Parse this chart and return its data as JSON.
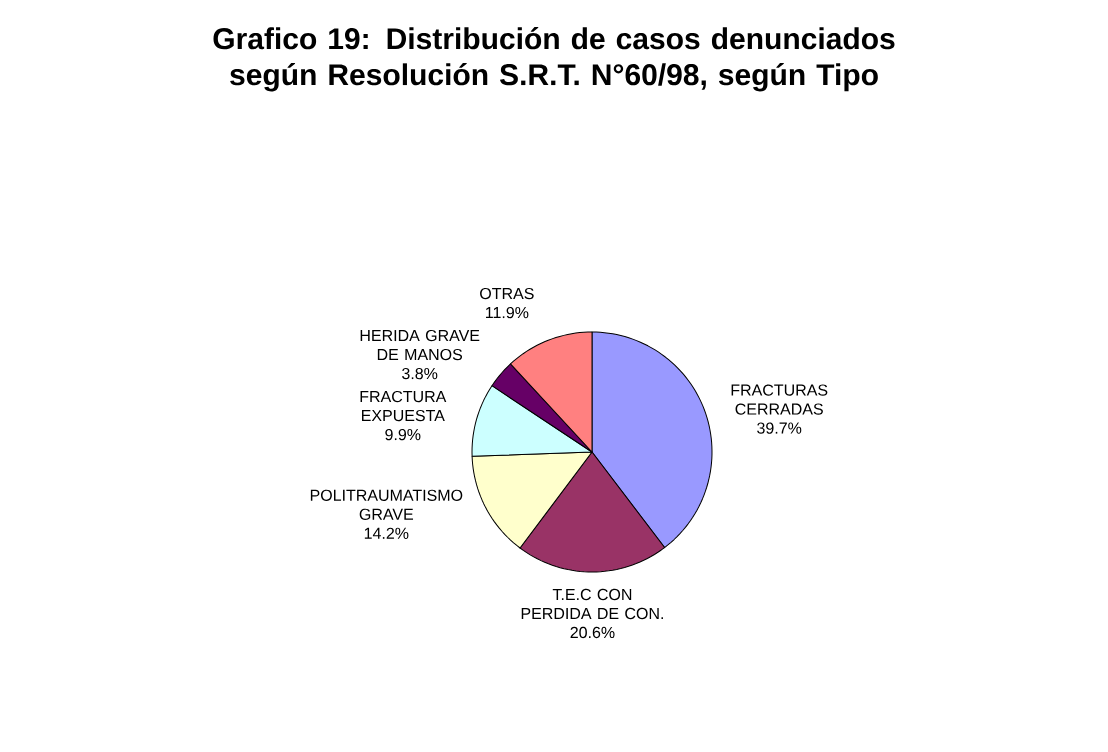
{
  "chart_data": {
    "type": "pie",
    "title": "Grafico 19: Distribución de casos denunciados según Resolución S.R.T. N°60/98, según Tipo",
    "categories": [
      "FRACTURAS CERRADAS",
      "T.E.C CON PERDIDA DE CON.",
      "POLITRAUMATISMO GRAVE",
      "FRACTURA EXPUESTA",
      "HERIDA GRAVE DE MANOS",
      "OTRAS"
    ],
    "values": [
      39.7,
      20.6,
      14.2,
      9.9,
      3.8,
      11.9
    ],
    "value_labels": [
      "39.7%",
      "20.6%",
      "14.2%",
      "9.9%",
      "3.8%",
      "11.9%"
    ],
    "colors": [
      "#9999ff",
      "#993366",
      "#ffffcc",
      "#ccffff",
      "#660066",
      "#ff8080"
    ]
  }
}
